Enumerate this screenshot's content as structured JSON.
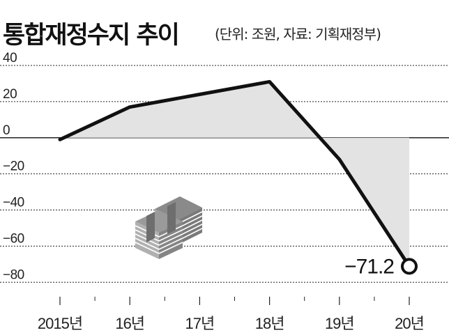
{
  "chart_data": {
    "type": "area",
    "title": "통합재정수지 추이",
    "subtitle": "(단위: 조원, 자료: 기획재정부)",
    "categories": [
      "2015년",
      "16년",
      "17년",
      "18년",
      "19년",
      "20년"
    ],
    "values": [
      -1,
      17,
      24,
      31,
      -12,
      -71.2
    ],
    "ylim": [
      -88,
      40
    ],
    "yticks": [
      40,
      20,
      0,
      -20,
      -40,
      -60,
      -80
    ],
    "yticklabels": [
      "40",
      "20",
      "0",
      "−20",
      "−40",
      "−60",
      "−80"
    ],
    "grid": "horizontal",
    "annotations": [
      {
        "index": 5,
        "text": "−71.2"
      }
    ],
    "colors": {
      "line": "#111111",
      "fill": "#e3e3e3",
      "grid": "#222222"
    },
    "icon": "money-stack-icon"
  }
}
